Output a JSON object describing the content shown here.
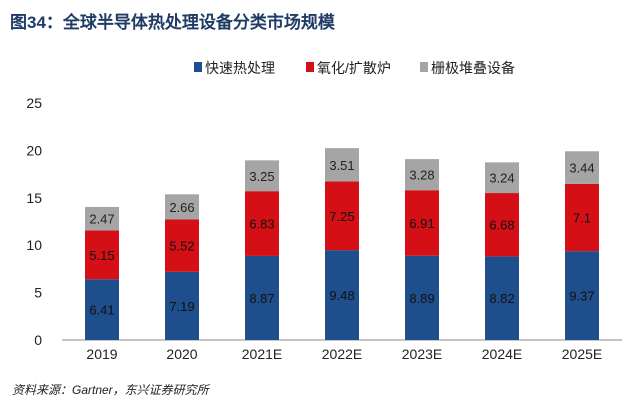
{
  "title": "图34：全球半导体热处理设备分类市场规模",
  "source": "资料来源：Gartner，东兴证券研究所",
  "chart_data": {
    "type": "stacked-bar",
    "title": "",
    "xlabel": "",
    "ylabel": "",
    "categories": [
      "2019",
      "2020",
      "2021E",
      "2022E",
      "2023E",
      "2024E",
      "2025E"
    ],
    "ylim": [
      0,
      25
    ],
    "yticks": [
      0,
      5,
      10,
      15,
      20,
      25
    ],
    "grid": false,
    "legend": "top",
    "series": [
      {
        "name": "快速热处理",
        "color": "#1f4e8c",
        "values": [
          6.41,
          7.19,
          8.87,
          9.48,
          8.89,
          8.82,
          9.37
        ]
      },
      {
        "name": "氧化/扩散炉",
        "color": "#d40f16",
        "values": [
          5.15,
          5.52,
          6.83,
          7.25,
          6.91,
          6.68,
          7.1
        ]
      },
      {
        "name": "栅极堆叠设备",
        "color": "#a5a5a5",
        "values": [
          2.47,
          2.66,
          3.25,
          3.51,
          3.28,
          3.24,
          3.44
        ]
      }
    ]
  }
}
